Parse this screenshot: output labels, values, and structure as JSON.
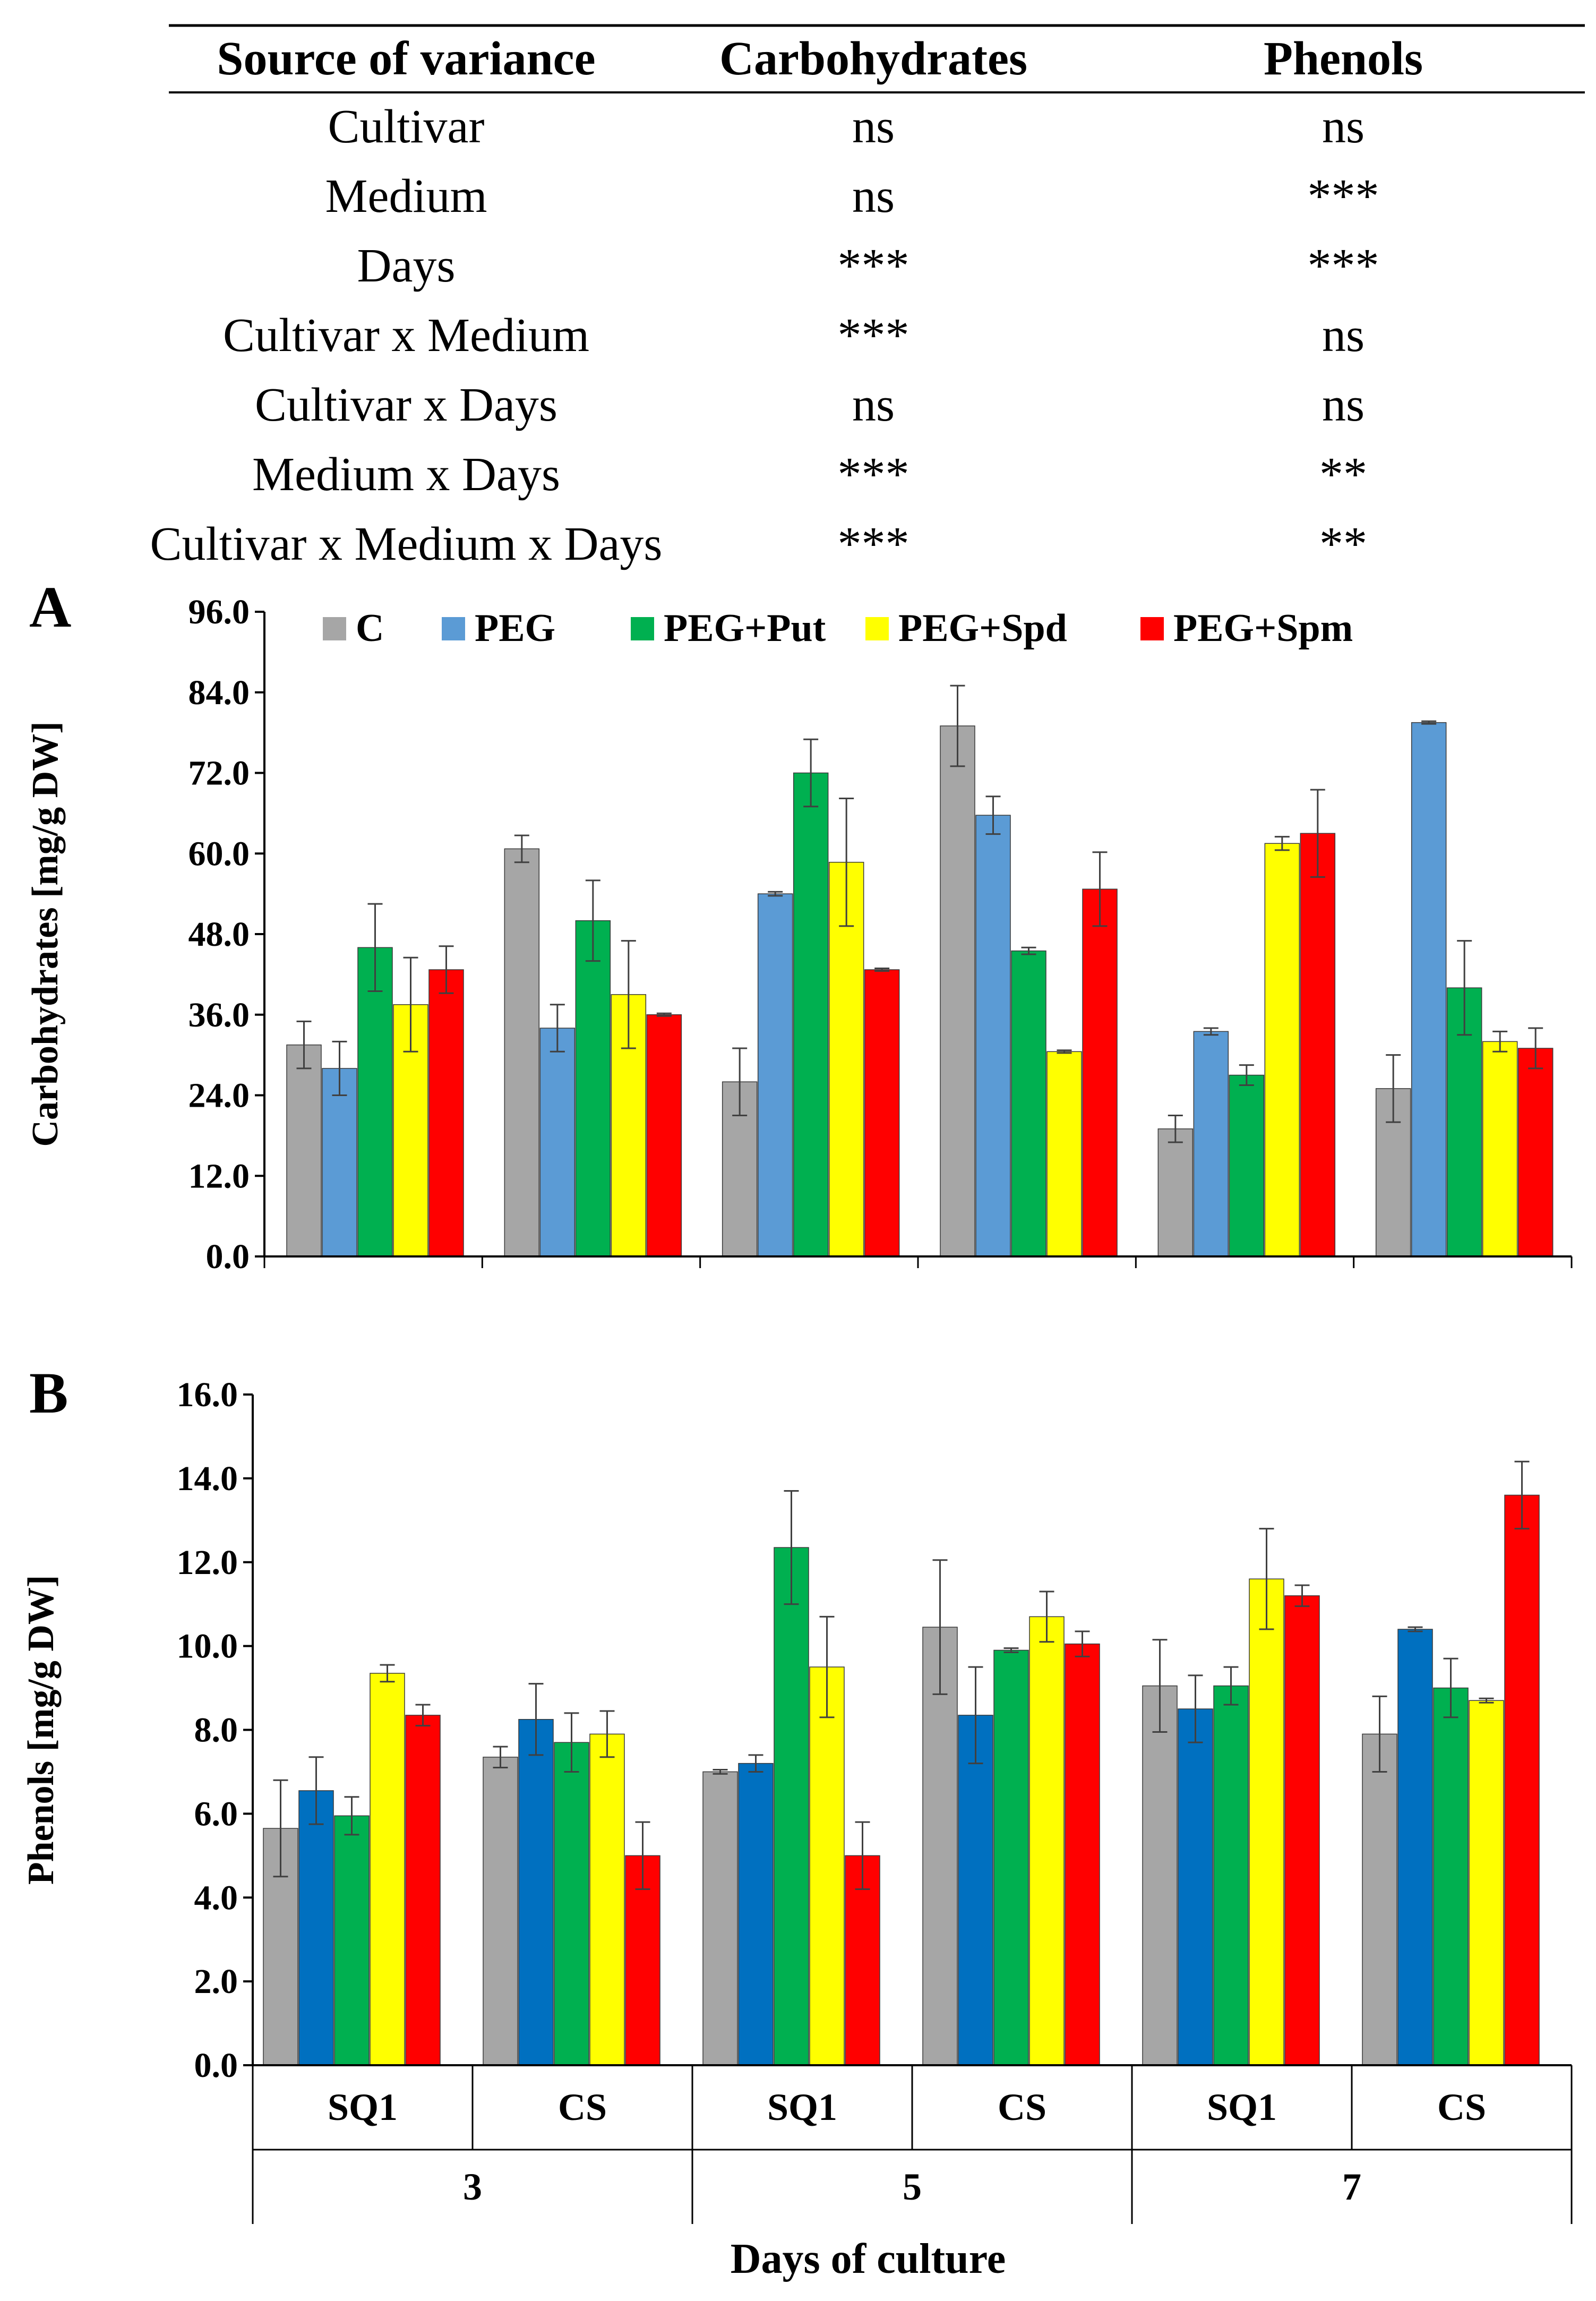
{
  "anova_table": {
    "headers": [
      "Source of variance",
      "Carbohydrates",
      "Phenols"
    ],
    "rows": [
      {
        "source": "Cultivar",
        "carbohydrates": "ns",
        "phenols": "ns"
      },
      {
        "source": "Medium",
        "carbohydrates": "ns",
        "phenols": "***"
      },
      {
        "source": "Days",
        "carbohydrates": "***",
        "phenols": "***"
      },
      {
        "source": "Cultivar x Medium",
        "carbohydrates": "***",
        "phenols": "ns"
      },
      {
        "source": "Cultivar x Days",
        "carbohydrates": "ns",
        "phenols": "ns"
      },
      {
        "source": "Medium x Days",
        "carbohydrates": "***",
        "phenols": "**"
      },
      {
        "source": "Cultivar x Medium x Days",
        "carbohydrates": "***",
        "phenols": "**"
      }
    ]
  },
  "legend": [
    {
      "name": "C",
      "color": "#A6A6A6"
    },
    {
      "name": "PEG",
      "color": "#5B9BD5"
    },
    {
      "name": "PEG+Put",
      "color": "#00B050"
    },
    {
      "name": "PEG+Spd",
      "color": "#FFFF00"
    },
    {
      "name": "PEG+Spm",
      "color": "#FF0000"
    }
  ],
  "x_axis": {
    "title": "Days of culture",
    "cultivars": [
      "SQ1",
      "CS",
      "SQ1",
      "CS",
      "SQ1",
      "CS"
    ],
    "days": [
      "3",
      "5",
      "7"
    ]
  },
  "chart_data": [
    {
      "type": "bar",
      "panel_label": "A",
      "ylabel": "Carbohydrates [mg/g DW]",
      "ylim": [
        0,
        96
      ],
      "yticks": [
        "0.0",
        "12.0",
        "24.0",
        "36.0",
        "48.0",
        "60.0",
        "72.0",
        "84.0",
        "96.0"
      ],
      "categories": [
        "3 SQ1",
        "3 CS",
        "5 SQ1",
        "5 CS",
        "7 SQ1",
        "7 CS"
      ],
      "series": [
        {
          "name": "C",
          "color": "#A6A6A6",
          "values": [
            31.5,
            60.7,
            26.0,
            79.0,
            19.0,
            25.0
          ],
          "errors": [
            3.5,
            2.0,
            5.0,
            6.0,
            2.0,
            5.0
          ]
        },
        {
          "name": "PEG",
          "color": "#5B9BD5",
          "values": [
            28.0,
            34.0,
            54.0,
            65.7,
            33.5,
            79.5
          ],
          "errors": [
            4.0,
            3.5,
            0.3,
            2.8,
            0.5,
            0.2
          ]
        },
        {
          "name": "PEG+Put",
          "color": "#00B050",
          "values": [
            46.0,
            50.0,
            72.0,
            45.5,
            27.0,
            40.0
          ],
          "errors": [
            6.5,
            6.0,
            5.0,
            0.5,
            1.5,
            7.0
          ]
        },
        {
          "name": "PEG+Spd",
          "color": "#FFFF00",
          "values": [
            37.5,
            39.0,
            58.7,
            30.5,
            61.5,
            32.0
          ],
          "errors": [
            7.0,
            8.0,
            9.5,
            0.2,
            1.0,
            1.5
          ]
        },
        {
          "name": "PEG+Spm",
          "color": "#FF0000",
          "values": [
            42.7,
            36.0,
            42.7,
            54.7,
            63.0,
            31.0
          ],
          "errors": [
            3.5,
            0.2,
            0.2,
            5.5,
            6.5,
            3.0
          ]
        }
      ]
    },
    {
      "type": "bar",
      "panel_label": "B",
      "ylabel": "Phenols [mg/g DW]",
      "ylim": [
        0,
        16
      ],
      "yticks": [
        "0.0",
        "2.0",
        "4.0",
        "6.0",
        "8.0",
        "10.0",
        "12.0",
        "14.0",
        "16.0"
      ],
      "categories": [
        "3 SQ1",
        "3 CS",
        "5 SQ1",
        "5 CS",
        "7 SQ1",
        "7 CS"
      ],
      "series": [
        {
          "name": "C",
          "color": "#A6A6A6",
          "values": [
            5.65,
            7.35,
            7.0,
            10.45,
            9.05,
            7.9
          ],
          "errors": [
            1.15,
            0.25,
            0.05,
            1.6,
            1.1,
            0.9
          ]
        },
        {
          "name": "PEG",
          "color": "#0070C0",
          "values": [
            6.55,
            8.25,
            7.2,
            8.35,
            8.5,
            10.4
          ],
          "errors": [
            0.8,
            0.85,
            0.2,
            1.15,
            0.8,
            0.05
          ]
        },
        {
          "name": "PEG+Put",
          "color": "#00B050",
          "values": [
            5.95,
            7.7,
            12.35,
            9.9,
            9.05,
            9.0
          ],
          "errors": [
            0.45,
            0.7,
            1.35,
            0.05,
            0.45,
            0.7
          ]
        },
        {
          "name": "PEG+Spd",
          "color": "#FFFF00",
          "values": [
            9.35,
            7.9,
            9.5,
            10.7,
            11.6,
            8.7
          ],
          "errors": [
            0.2,
            0.55,
            1.2,
            0.6,
            1.2,
            0.05
          ]
        },
        {
          "name": "PEG+Spm",
          "color": "#FF0000",
          "values": [
            8.35,
            5.0,
            5.0,
            10.05,
            11.2,
            13.6
          ],
          "errors": [
            0.25,
            0.8,
            0.8,
            0.3,
            0.25,
            0.8
          ]
        }
      ]
    }
  ]
}
